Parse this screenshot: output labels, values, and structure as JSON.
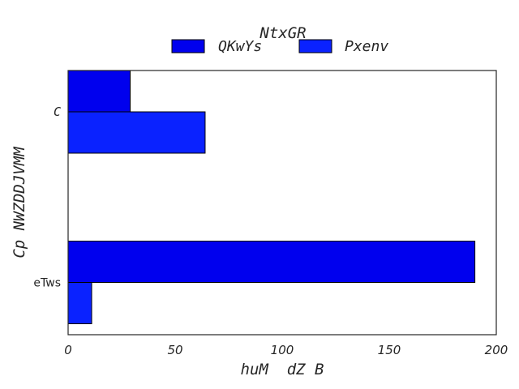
{
  "chart_data": {
    "type": "bar",
    "orientation": "horizontal",
    "title": "NtxGR",
    "xlabel": "huM  dZ B",
    "ylabel": "Cp NWZDDJVMM",
    "categories": [
      "C",
      "eTws"
    ],
    "series": [
      {
        "name": "QKwYs",
        "values": [
          29,
          190
        ],
        "color": "#0000ee"
      },
      {
        "name": "Pxenv",
        "values": [
          64,
          11
        ],
        "color": "#0a22ff"
      }
    ],
    "xlim": [
      0,
      200
    ],
    "xticks": [
      0,
      50,
      100,
      150,
      200
    ],
    "grid": false,
    "legend_position": "top-center"
  }
}
